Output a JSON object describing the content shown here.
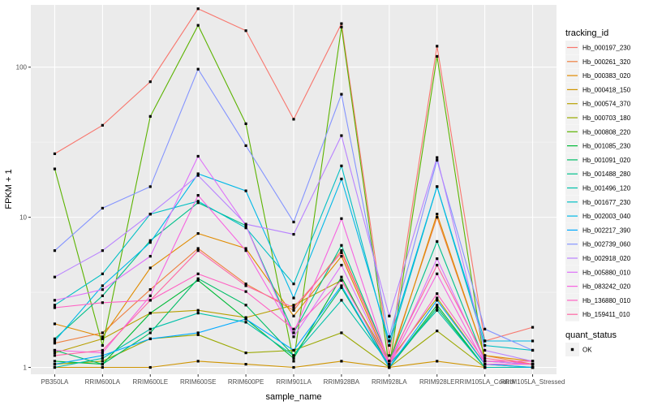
{
  "chart_data": {
    "type": "line",
    "xlabel": "sample_name",
    "ylabel": "FPKM + 1",
    "y_scale": "log10",
    "ylim": [
      0.9,
      260
    ],
    "y_ticks": [
      1,
      10,
      100
    ],
    "y_tick_labels": [
      "1",
      "10",
      "100"
    ],
    "grid": true,
    "background": "#EBEBEB",
    "categories": [
      "PB350LA",
      "RRIM600LA",
      "RRIM600LE",
      "RRIM600SE",
      "RRIM600PE",
      "RRIM901LA",
      "RRIM928BA",
      "RRIM928LA",
      "RRIM928LE",
      "RRIM105LA_Control",
      "RRIM105LA_Stressed"
    ],
    "legend": {
      "position": "right",
      "color_title": "tracking_id",
      "shape_title": "quant_status",
      "shape_items": [
        "OK"
      ]
    },
    "series": [
      {
        "name": "Hb_000197_230",
        "color": "#F8766D",
        "values": [
          26.5,
          41,
          80,
          245,
          175,
          45,
          195,
          1.2,
          138,
          1.5,
          1.85
        ]
      },
      {
        "name": "Hb_000261_320",
        "color": "#EE8040",
        "values": [
          1.45,
          1.7,
          3.3,
          6.2,
          3.6,
          2.4,
          6.0,
          1.1,
          10.0,
          1.2,
          1.05
        ]
      },
      {
        "name": "Hb_000383_020",
        "color": "#E08B00",
        "values": [
          1.95,
          1.6,
          4.6,
          7.8,
          6.2,
          2.2,
          5.5,
          1.05,
          10.5,
          1.2,
          1.1
        ]
      },
      {
        "name": "Hb_000418_150",
        "color": "#CF9400",
        "values": [
          1.0,
          1.0,
          1.0,
          1.1,
          1.05,
          1.0,
          1.1,
          1.0,
          1.1,
          1.0,
          1.0
        ]
      },
      {
        "name": "Hb_000574_370",
        "color": "#B79F00",
        "values": [
          1.25,
          1.55,
          2.3,
          2.4,
          2.15,
          2.6,
          3.8,
          1.1,
          2.9,
          1.05,
          1.0
        ]
      },
      {
        "name": "Hb_000703_180",
        "color": "#9AA800",
        "values": [
          1.05,
          1.1,
          1.55,
          1.65,
          1.25,
          1.3,
          1.7,
          1.0,
          1.75,
          1.0,
          1.0
        ]
      },
      {
        "name": "Hb_000808_220",
        "color": "#5BB300",
        "values": [
          21,
          1.4,
          47,
          190,
          42,
          1.1,
          185,
          1.0,
          118,
          1.05,
          1.05
        ]
      },
      {
        "name": "Hb_001085_230",
        "color": "#00BA38",
        "values": [
          1.1,
          1.05,
          2.3,
          3.8,
          2.1,
          1.15,
          4.0,
          1.0,
          2.6,
          1.0,
          1.0
        ]
      },
      {
        "name": "Hb_001091_020",
        "color": "#00BD67",
        "values": [
          1.3,
          1.05,
          1.7,
          3.9,
          2.6,
          1.2,
          3.4,
          1.0,
          2.5,
          1.0,
          1.0
        ]
      },
      {
        "name": "Hb_001488_280",
        "color": "#00C08B",
        "values": [
          1.55,
          3.0,
          7.0,
          12.5,
          8.8,
          1.7,
          6.5,
          1.1,
          6.9,
          1.1,
          1.05
        ]
      },
      {
        "name": "Hb_001496_120",
        "color": "#00C1A9",
        "values": [
          1.0,
          1.15,
          1.8,
          2.3,
          2.0,
          1.2,
          2.8,
          1.05,
          2.4,
          1.0,
          1.0
        ]
      },
      {
        "name": "Hb_001677_230",
        "color": "#00BFC4",
        "values": [
          2.6,
          4.2,
          10.5,
          12.8,
          8.5,
          3.6,
          22,
          1.4,
          16,
          1.4,
          1.3
        ]
      },
      {
        "name": "Hb_002003_040",
        "color": "#00B8E7",
        "values": [
          1.5,
          3.5,
          6.8,
          19.5,
          15,
          2.9,
          18,
          1.5,
          16,
          1.5,
          1.5
        ]
      },
      {
        "name": "Hb_002217_390",
        "color": "#00A9FF",
        "values": [
          1.05,
          1.2,
          1.55,
          1.7,
          2.1,
          1.3,
          3.5,
          1.0,
          2.8,
          1.05,
          1.0
        ]
      },
      {
        "name": "Hb_002739_060",
        "color": "#8494FF",
        "values": [
          6.0,
          11.5,
          16,
          97,
          30,
          9.3,
          66,
          1.6,
          24,
          1.8,
          1.3
        ]
      },
      {
        "name": "Hb_002918_020",
        "color": "#B983FF",
        "values": [
          4.0,
          6.0,
          10.5,
          19,
          9.0,
          7.7,
          35,
          2.2,
          25,
          1.3,
          1.1
        ]
      },
      {
        "name": "Hb_005880_010",
        "color": "#DE71F9",
        "values": [
          2.8,
          3.3,
          5.5,
          25.5,
          8.8,
          1.6,
          4.8,
          1.05,
          5.3,
          1.1,
          1.05
        ]
      },
      {
        "name": "Hb_083242_020",
        "color": "#F763E0",
        "values": [
          1.3,
          1.25,
          3.0,
          14,
          6.0,
          1.7,
          9.8,
          1.05,
          4.2,
          1.05,
          1.05
        ]
      },
      {
        "name": "Hb_136880_010",
        "color": "#FF61C3",
        "values": [
          2.5,
          2.7,
          2.8,
          4.2,
          3.2,
          1.8,
          3.8,
          1.05,
          3.1,
          1.1,
          1.1
        ]
      },
      {
        "name": "Hb_159411_010",
        "color": "#FF67A4",
        "values": [
          1.2,
          1.3,
          2.8,
          6.0,
          3.5,
          2.5,
          5.8,
          1.1,
          4.8,
          1.15,
          1.05
        ]
      }
    ]
  }
}
